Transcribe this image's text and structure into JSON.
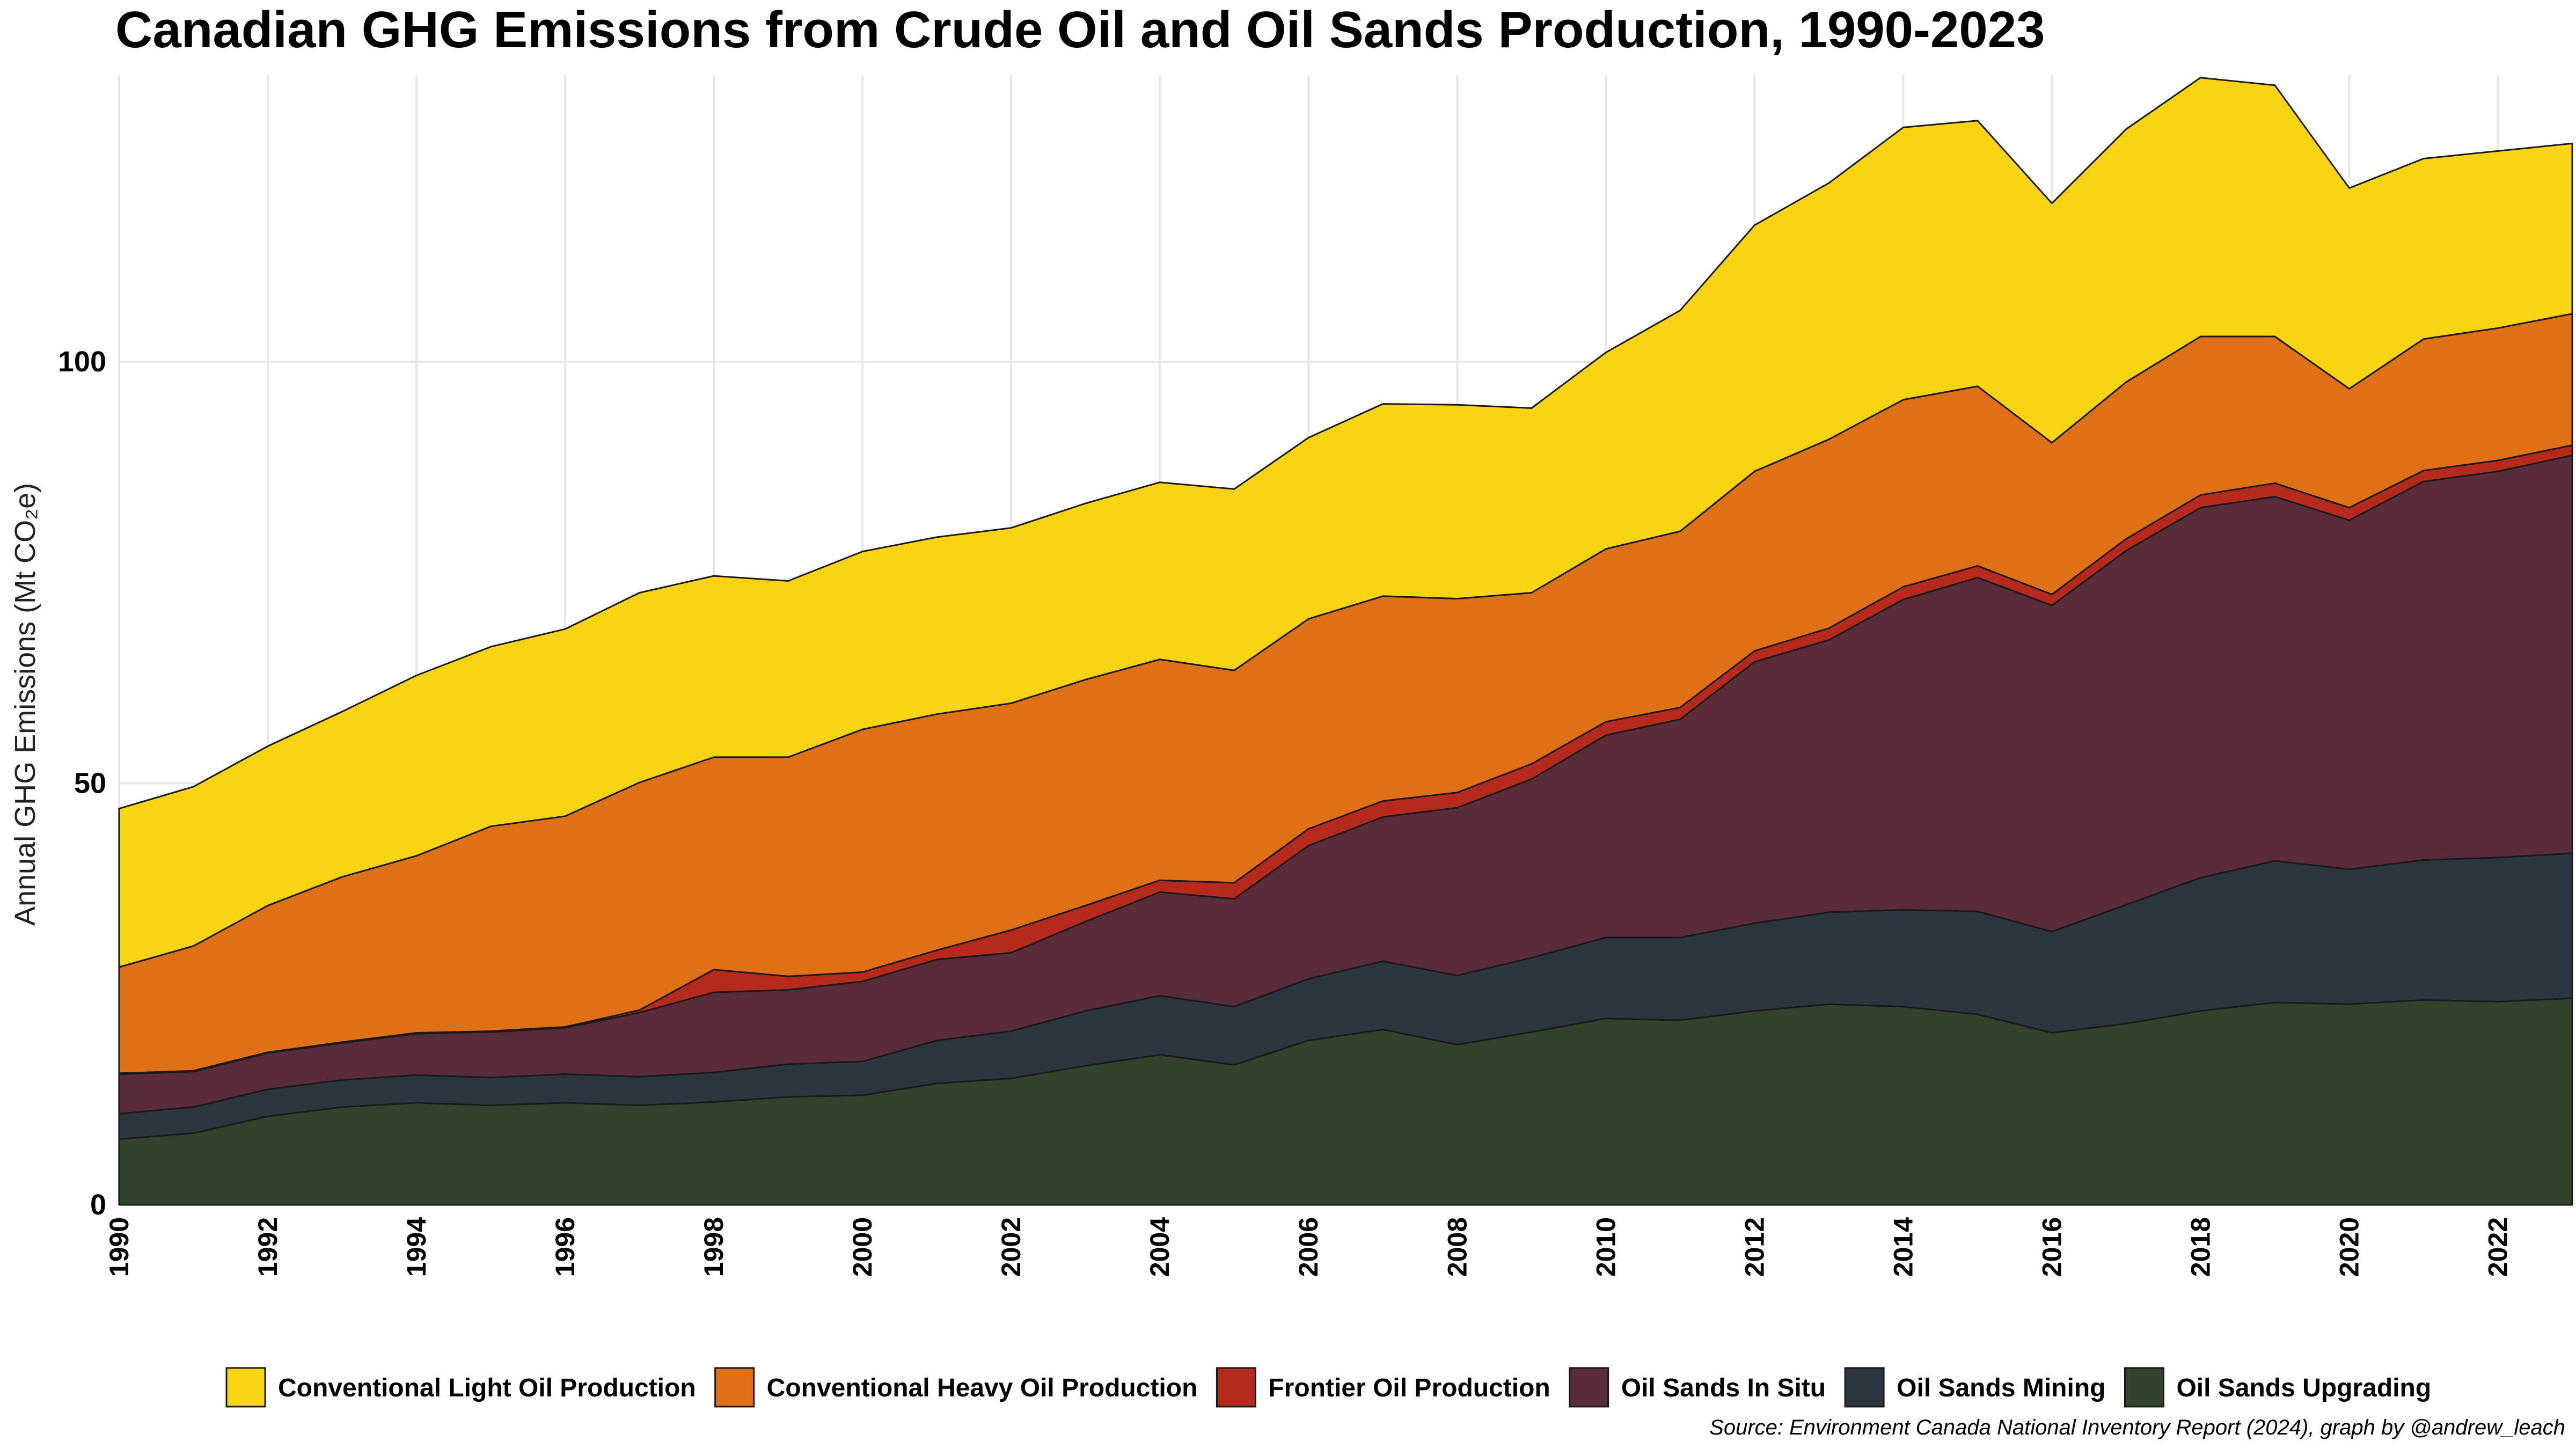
{
  "chart_data": {
    "type": "area",
    "stacked": true,
    "title": "Canadian GHG Emissions from Crude Oil and Oil Sands Production, 1990-2023",
    "ylabel": "Annual GHG Emissions  (Mt CO₂e)",
    "xlabel": "",
    "x": [
      1990,
      1991,
      1992,
      1993,
      1994,
      1995,
      1996,
      1997,
      1998,
      1999,
      2000,
      2001,
      2002,
      2003,
      2004,
      2005,
      2006,
      2007,
      2008,
      2009,
      2010,
      2011,
      2012,
      2013,
      2014,
      2015,
      2016,
      2017,
      2018,
      2019,
      2020,
      2021,
      2022,
      2023
    ],
    "xlim": [
      1990,
      2023
    ],
    "ylim": [
      0,
      134
    ],
    "x_ticks": [
      "1990",
      "1992",
      "1994",
      "1996",
      "1998",
      "2000",
      "2002",
      "2004",
      "2006",
      "2008",
      "2010",
      "2012",
      "2014",
      "2016",
      "2018",
      "2020",
      "2022"
    ],
    "y_ticks": [
      "0",
      "50",
      "100"
    ],
    "grid": true,
    "legend_position": "bottom",
    "series": [
      {
        "name": "Oil Sands Upgrading",
        "color": "#31432a",
        "values": [
          7.8,
          8.5,
          10.5,
          11.6,
          12.1,
          11.8,
          12.1,
          11.8,
          12.2,
          12.8,
          13.0,
          14.4,
          15.0,
          16.5,
          17.8,
          16.6,
          19.5,
          20.8,
          19.0,
          20.5,
          22.1,
          21.9,
          23.0,
          23.8,
          23.5,
          22.6,
          20.4,
          21.5,
          23.0,
          24.0,
          23.8,
          24.3,
          24.1,
          24.5
        ]
      },
      {
        "name": "Oil Sands Mining",
        "color": "#2b3641",
        "values": [
          3.0,
          3.1,
          3.2,
          3.2,
          3.3,
          3.3,
          3.4,
          3.4,
          3.5,
          3.9,
          4.0,
          5.1,
          5.6,
          6.5,
          7.0,
          6.9,
          7.3,
          8.1,
          8.2,
          8.8,
          9.6,
          9.8,
          10.4,
          10.9,
          11.5,
          12.2,
          12.0,
          14.1,
          15.8,
          16.8,
          16.0,
          16.6,
          17.1,
          17.2
        ]
      },
      {
        "name": "Oil Sands In Situ",
        "color": "#5a2b39",
        "values": [
          4.7,
          4.2,
          4.3,
          4.4,
          4.9,
          5.4,
          5.5,
          7.6,
          9.5,
          8.8,
          9.5,
          9.6,
          9.3,
          10.6,
          12.3,
          12.8,
          15.8,
          17.1,
          19.9,
          21.2,
          24.0,
          25.9,
          31.0,
          32.3,
          36.8,
          39.6,
          38.7,
          42.0,
          43.9,
          43.2,
          41.4,
          44.9,
          45.8,
          47.2
        ]
      },
      {
        "name": "Frontier Oil Production",
        "color": "#b52a1c",
        "values": [
          0.1,
          0.1,
          0.1,
          0.1,
          0.1,
          0.1,
          0.1,
          0.3,
          2.7,
          1.6,
          1.1,
          1.1,
          2.7,
          1.9,
          1.4,
          1.9,
          2.0,
          1.9,
          1.8,
          1.8,
          1.6,
          1.4,
          1.3,
          1.4,
          1.5,
          1.4,
          1.3,
          1.4,
          1.5,
          1.6,
          1.5,
          1.3,
          1.3,
          1.2
        ]
      },
      {
        "name": "Conventional Heavy Oil Production",
        "color": "#e07015",
        "values": [
          12.6,
          14.8,
          17.4,
          19.6,
          21.0,
          24.3,
          25.0,
          27.0,
          25.2,
          26.0,
          28.8,
          28.0,
          26.9,
          26.8,
          26.2,
          25.2,
          24.9,
          24.3,
          23.0,
          20.3,
          20.5,
          20.9,
          21.3,
          22.4,
          22.2,
          21.3,
          18.0,
          18.6,
          18.8,
          17.4,
          14.1,
          15.6,
          15.7,
          15.6
        ]
      },
      {
        "name": "Conventional Light Oil Production",
        "color": "#f9d413",
        "values": [
          18.8,
          18.9,
          18.9,
          19.6,
          21.4,
          21.3,
          22.2,
          22.5,
          21.5,
          20.9,
          21.1,
          21.0,
          20.8,
          20.9,
          21.0,
          21.5,
          21.5,
          22.8,
          23.0,
          21.9,
          23.3,
          26.2,
          29.2,
          30.4,
          32.3,
          31.5,
          28.4,
          30.0,
          30.7,
          29.8,
          23.8,
          21.4,
          21.0,
          20.2
        ]
      }
    ],
    "legend_order": [
      "Conventional Light Oil Production",
      "Conventional Heavy Oil Production",
      "Frontier Oil Production",
      "Oil Sands In Situ",
      "Oil Sands Mining",
      "Oil Sands Upgrading"
    ],
    "caption": "Source: Environment Canada National Inventory Report (2024), graph by @andrew_leach"
  }
}
